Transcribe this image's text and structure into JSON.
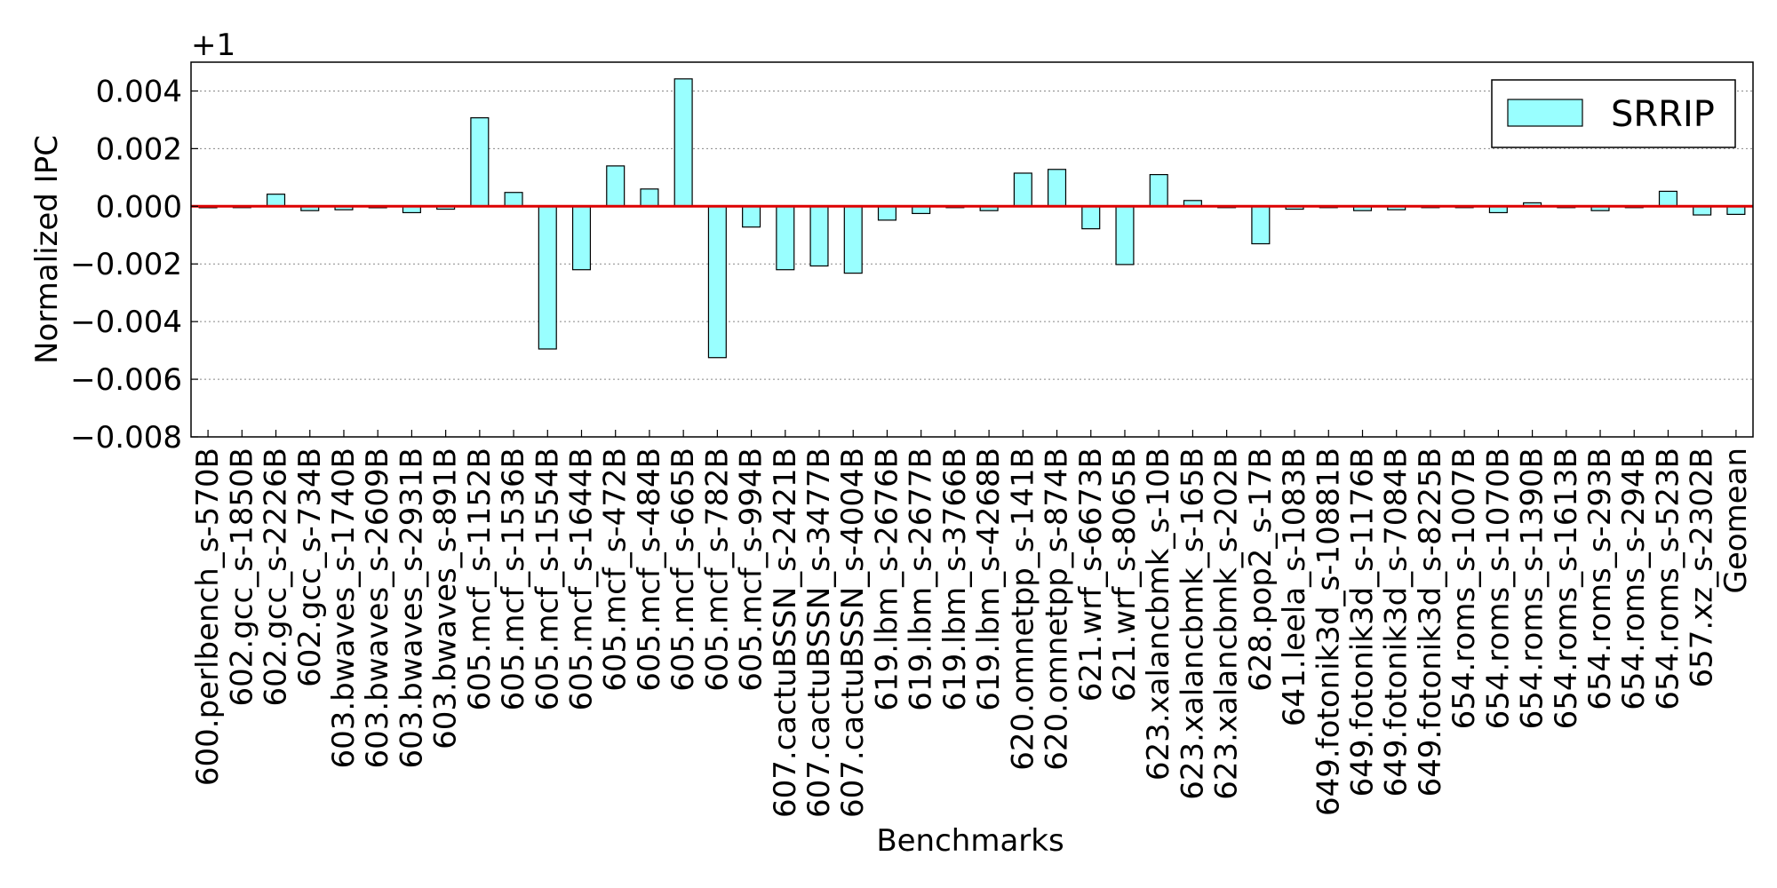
{
  "chart_data": {
    "type": "bar",
    "title": "",
    "xlabel": "Benchmarks",
    "ylabel": "Normalized IPC",
    "offset_label": "+1",
    "ylim": [
      -0.008,
      0.005
    ],
    "yticks": [
      0.004,
      0.002,
      0.0,
      -0.002,
      -0.004,
      -0.006,
      -0.008
    ],
    "ytick_labels": [
      "0.004",
      "0.002",
      "0.000",
      "−0.002",
      "−0.004",
      "−0.006",
      "−0.008"
    ],
    "grid": "horizontal dotted",
    "baseline": 0.0,
    "baseline_color": "#dd0000",
    "bar_color": "#99ffff",
    "legend": {
      "position": "top-right",
      "label": "SRRIP"
    },
    "categories": [
      "600.perlbench_s-570B",
      "602.gcc_s-1850B",
      "602.gcc_s-2226B",
      "602.gcc_s-734B",
      "603.bwaves_s-1740B",
      "603.bwaves_s-2609B",
      "603.bwaves_s-2931B",
      "603.bwaves_s-891B",
      "605.mcf_s-1152B",
      "605.mcf_s-1536B",
      "605.mcf_s-1554B",
      "605.mcf_s-1644B",
      "605.mcf_s-472B",
      "605.mcf_s-484B",
      "605.mcf_s-665B",
      "605.mcf_s-782B",
      "605.mcf_s-994B",
      "607.cactuBSSN_s-2421B",
      "607.cactuBSSN_s-3477B",
      "607.cactuBSSN_s-4004B",
      "619.lbm_s-2676B",
      "619.lbm_s-2677B",
      "619.lbm_s-3766B",
      "619.lbm_s-4268B",
      "620.omnetpp_s-141B",
      "620.omnetpp_s-874B",
      "621.wrf_s-6673B",
      "621.wrf_s-8065B",
      "623.xalancbmk_s-10B",
      "623.xalancbmk_s-165B",
      "623.xalancbmk_s-202B",
      "628.pop2_s-17B",
      "641.leela_s-1083B",
      "649.fotonik3d_s-10881B",
      "649.fotonik3d_s-1176B",
      "649.fotonik3d_s-7084B",
      "649.fotonik3d_s-8225B",
      "654.roms_s-1007B",
      "654.roms_s-1070B",
      "654.roms_s-1390B",
      "654.roms_s-1613B",
      "654.roms_s-293B",
      "654.roms_s-294B",
      "654.roms_s-523B",
      "657.xz_s-2302B",
      "Geomean"
    ],
    "series": [
      {
        "name": "SRRIP",
        "values": [
          -5e-05,
          -3e-05,
          0.00042,
          -0.00015,
          -0.00012,
          -5e-05,
          -0.00022,
          -0.0001,
          0.00307,
          0.00048,
          -0.00495,
          -0.0022,
          0.0014,
          0.0006,
          0.00442,
          -0.00525,
          -0.00072,
          -0.0022,
          -0.00207,
          -0.00232,
          -0.00048,
          -0.00025,
          -3e-05,
          -0.00015,
          0.00115,
          0.00128,
          -0.00078,
          -0.00202,
          0.0011,
          0.0002,
          -3e-05,
          -0.0013,
          -0.0001,
          -3e-05,
          -0.00015,
          -0.00012,
          -3e-05,
          -3e-05,
          -0.00022,
          0.00012,
          -3e-05,
          -0.00015,
          -3e-05,
          0.00052,
          -0.0003,
          -0.00028
        ]
      }
    ]
  }
}
